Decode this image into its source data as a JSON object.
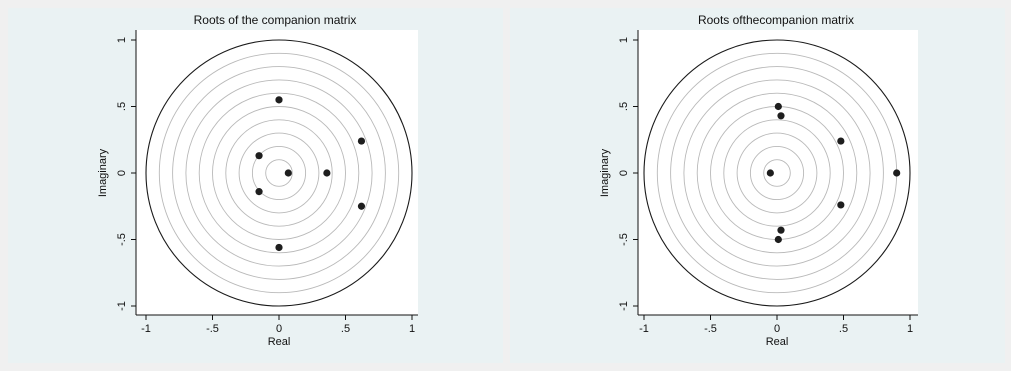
{
  "chart_data": [
    {
      "type": "scatter",
      "title": "Roots of the companion matrix",
      "xlabel": "Real",
      "ylabel": "Imaginary",
      "xlim": [
        -1,
        1
      ],
      "ylim": [
        -1,
        1
      ],
      "x_ticks": [
        "-1",
        "-.5",
        "0",
        ".5",
        "1"
      ],
      "y_ticks": [
        "-1",
        "-.5",
        "0",
        ".5",
        "1"
      ],
      "x_tick_values": [
        -1,
        -0.5,
        0,
        0.5,
        1
      ],
      "y_tick_values": [
        -1,
        -0.5,
        0,
        0.5,
        1
      ],
      "ring_radii": [
        0.1,
        0.2,
        0.3,
        0.4,
        0.5,
        0.6,
        0.7,
        0.8,
        0.9,
        1.0
      ],
      "series": [
        {
          "points": [
            {
              "x": 0.0,
              "y": 0.55
            },
            {
              "x": 0.62,
              "y": 0.24
            },
            {
              "x": -0.15,
              "y": 0.13
            },
            {
              "x": 0.07,
              "y": 0.0
            },
            {
              "x": 0.36,
              "y": 0.0
            },
            {
              "x": -0.15,
              "y": -0.14
            },
            {
              "x": 0.62,
              "y": -0.25
            },
            {
              "x": 0.0,
              "y": -0.56
            }
          ]
        }
      ]
    },
    {
      "type": "scatter",
      "title": "Roots ofthecompanion matrix",
      "xlabel": "Real",
      "ylabel": "Imaginary",
      "xlim": [
        -1,
        1
      ],
      "ylim": [
        -1,
        1
      ],
      "x_ticks": [
        "-1",
        "-.5",
        "0",
        ".5",
        "1"
      ],
      "y_ticks": [
        "-1",
        "-.5",
        "0",
        ".5",
        "1"
      ],
      "x_tick_values": [
        -1,
        -0.5,
        0,
        0.5,
        1
      ],
      "y_tick_values": [
        -1,
        -0.5,
        0,
        0.5,
        1
      ],
      "ring_radii": [
        0.1,
        0.2,
        0.3,
        0.4,
        0.5,
        0.6,
        0.7,
        0.8,
        0.9,
        1.0
      ],
      "series": [
        {
          "points": [
            {
              "x": 0.01,
              "y": 0.5
            },
            {
              "x": 0.03,
              "y": 0.43
            },
            {
              "x": 0.48,
              "y": 0.24
            },
            {
              "x": -0.05,
              "y": 0.0
            },
            {
              "x": 0.9,
              "y": 0.0
            },
            {
              "x": 0.48,
              "y": -0.24
            },
            {
              "x": 0.03,
              "y": -0.43
            },
            {
              "x": 0.01,
              "y": -0.5
            }
          ]
        }
      ]
    }
  ]
}
